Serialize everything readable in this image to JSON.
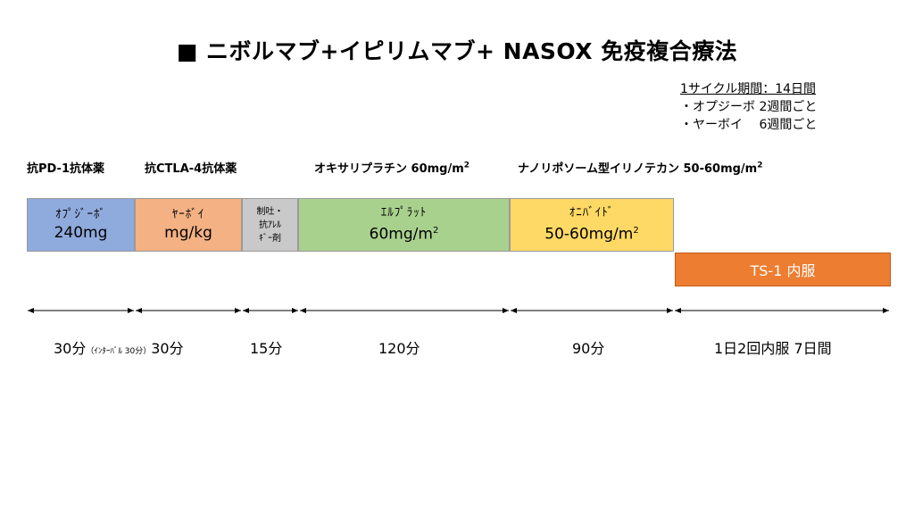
{
  "title": "■ ニボルマブ+イピリムマブ+ NASOX 免疫複合療法",
  "cycle": {
    "heading": "1サイクル期間：14日間",
    "line1": "・オプジーボ 2週間ごと",
    "line2": "・ヤーボイ　 6週間ごと"
  },
  "drug_labels": {
    "anti_pd1": "抗PD-1抗体薬",
    "anti_ctla4": "抗CTLA-4抗体薬",
    "oxaliplatin": "オキサリプラチン 60mg/m",
    "irinotecan": "ナノリポソーム型イリノテカン 50-60mg/m",
    "sup2": "2"
  },
  "boxes": {
    "opdivo": {
      "name": "ｵﾌﾟｼﾞｰﾎﾞ",
      "dose": "240mg"
    },
    "yervoy": {
      "name": "ﾔｰﾎﾞｲ",
      "dose": "mg/kg"
    },
    "antiemetic": {
      "line1": "制吐・",
      "line2": "抗ｱﾚﾙ",
      "line3": "ｷﾞｰ剤"
    },
    "elplat": {
      "name": "ｴﾙﾌﾟﾗｯﾄ",
      "dose": "60mg/m",
      "sup": "2"
    },
    "onivyde": {
      "name": "ｵﾆﾊﾞｲﾄﾞ",
      "dose": "50-60mg/m",
      "sup": "2"
    },
    "ts1": "TS-1 内服"
  },
  "colors": {
    "opdivo": "#8faadc",
    "yervoy": "#f4b183",
    "antiemetic": "#c9c9c9",
    "elplat": "#a9d18e",
    "onivyde": "#ffd966",
    "ts1": "#ed7d31"
  },
  "durations": {
    "d1_a": "30分",
    "d1_interval": "（ｲﾝﾀｰﾊﾞﾙ 30分）",
    "d1_b": "30分",
    "d2": "15分",
    "d3": "120分",
    "d4": "90分",
    "d5": "1日2回内服 7日間"
  }
}
